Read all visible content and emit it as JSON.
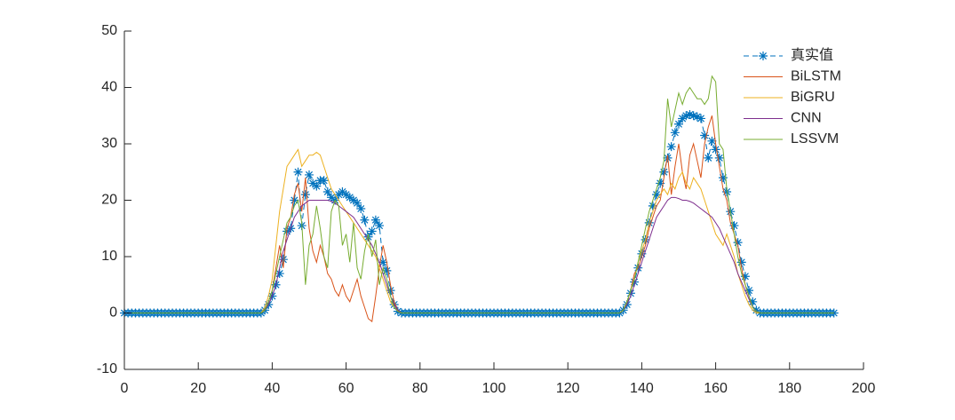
{
  "chart_data": {
    "type": "line",
    "x": [
      0,
      1,
      2,
      3,
      4,
      5,
      6,
      7,
      8,
      9,
      10,
      11,
      12,
      13,
      14,
      15,
      16,
      17,
      18,
      19,
      20,
      21,
      22,
      23,
      24,
      25,
      26,
      27,
      28,
      29,
      30,
      31,
      32,
      33,
      34,
      35,
      36,
      37,
      38,
      39,
      40,
      41,
      42,
      43,
      44,
      45,
      46,
      47,
      48,
      49,
      50,
      51,
      52,
      53,
      54,
      55,
      56,
      57,
      58,
      59,
      60,
      61,
      62,
      63,
      64,
      65,
      66,
      67,
      68,
      69,
      70,
      71,
      72,
      73,
      74,
      75,
      76,
      77,
      78,
      79,
      80,
      81,
      82,
      83,
      84,
      85,
      86,
      87,
      88,
      89,
      90,
      91,
      92,
      93,
      94,
      95,
      96,
      97,
      98,
      99,
      100,
      101,
      102,
      103,
      104,
      105,
      106,
      107,
      108,
      109,
      110,
      111,
      112,
      113,
      114,
      115,
      116,
      117,
      118,
      119,
      120,
      121,
      122,
      123,
      124,
      125,
      126,
      127,
      128,
      129,
      130,
      131,
      132,
      133,
      134,
      135,
      136,
      137,
      138,
      139,
      140,
      141,
      142,
      143,
      144,
      145,
      146,
      147,
      148,
      149,
      150,
      151,
      152,
      153,
      154,
      155,
      156,
      157,
      158,
      159,
      160,
      161,
      162,
      163,
      164,
      165,
      166,
      167,
      168,
      169,
      170,
      171,
      172,
      173,
      174,
      175,
      176,
      177,
      178,
      179,
      180,
      181,
      182,
      183,
      184,
      185,
      186,
      187,
      188,
      189,
      190,
      191,
      192
    ],
    "series": [
      {
        "name": "真实值",
        "color": "#0072BD",
        "dashed": true,
        "marker": "star",
        "values": [
          0,
          0,
          0,
          0,
          0,
          0,
          0,
          0,
          0,
          0,
          0,
          0,
          0,
          0,
          0,
          0,
          0,
          0,
          0,
          0,
          0,
          0,
          0,
          0,
          0,
          0,
          0,
          0,
          0,
          0,
          0,
          0,
          0,
          0,
          0,
          0,
          0,
          0,
          0.5,
          1.5,
          3,
          5,
          7,
          9.5,
          14.5,
          15,
          20,
          25,
          15.5,
          21,
          24.5,
          23,
          22.5,
          23.5,
          23.5,
          21.5,
          20.5,
          20,
          21,
          21.5,
          21,
          20.5,
          20,
          19.5,
          18.5,
          16.5,
          13.5,
          14.5,
          16.5,
          15.5,
          9,
          7.5,
          4,
          1.5,
          0.3,
          0,
          0,
          0,
          0,
          0,
          0,
          0,
          0,
          0,
          0,
          0,
          0,
          0,
          0,
          0,
          0,
          0,
          0,
          0,
          0,
          0,
          0,
          0,
          0,
          0,
          0,
          0,
          0,
          0,
          0,
          0,
          0,
          0,
          0,
          0,
          0,
          0,
          0,
          0,
          0,
          0,
          0,
          0,
          0,
          0,
          0,
          0,
          0,
          0,
          0,
          0,
          0,
          0,
          0,
          0,
          0,
          0,
          0,
          0,
          0,
          0.5,
          1.5,
          3.5,
          5.5,
          8,
          10.5,
          13,
          16,
          19,
          21,
          23,
          25,
          27.5,
          29.5,
          32,
          33.5,
          34.5,
          35,
          35.2,
          35,
          34.8,
          34.5,
          31.5,
          27.5,
          30.5,
          29,
          27.5,
          24,
          21.5,
          18,
          15.5,
          12.5,
          9,
          6.5,
          4,
          2,
          0.5,
          0,
          0,
          0,
          0,
          0,
          0,
          0,
          0,
          0,
          0,
          0,
          0,
          0,
          0,
          0,
          0,
          0,
          0,
          0,
          0,
          0
        ]
      },
      {
        "name": "BiLSTM",
        "color": "#D95319",
        "dashed": false,
        "marker": "none",
        "values": [
          0,
          0,
          0,
          0,
          0,
          0,
          0,
          0,
          0,
          0,
          0,
          0,
          0,
          0,
          0,
          0,
          0,
          0,
          0,
          0,
          0,
          0,
          0,
          0,
          0,
          0,
          0,
          0,
          0,
          0,
          0,
          0,
          0,
          0,
          0,
          0,
          0,
          0,
          0.5,
          2,
          4,
          8,
          12,
          8,
          15,
          17,
          21,
          23,
          18,
          24,
          15,
          11,
          9,
          12,
          10,
          7,
          6,
          4,
          3,
          5,
          3,
          2,
          4,
          6,
          3,
          1,
          -1,
          -1.5,
          3,
          8,
          12,
          9,
          5,
          2,
          0.5,
          0,
          0,
          0,
          0,
          0,
          0,
          0,
          0,
          0,
          0,
          0,
          0,
          0,
          0,
          0,
          0,
          0,
          0,
          0,
          0,
          0,
          0,
          0,
          0,
          0,
          0,
          0,
          0,
          0,
          0,
          0,
          0,
          0,
          0,
          0,
          0,
          0,
          0,
          0,
          0,
          0,
          0,
          0,
          0,
          0,
          0,
          0,
          0,
          0,
          0,
          0,
          0,
          0,
          0,
          0,
          0,
          0,
          0,
          0,
          0,
          0.5,
          2,
          4,
          7,
          8,
          10,
          12,
          15,
          17,
          19,
          20,
          24,
          28,
          21,
          26,
          30,
          25,
          22,
          28,
          30,
          27,
          24,
          30,
          33,
          35,
          30,
          26,
          22,
          20,
          16,
          14,
          12,
          8,
          5,
          3,
          1,
          0.3,
          0,
          0,
          0,
          0,
          0,
          0,
          0,
          0,
          0,
          0,
          0,
          0,
          0,
          0,
          0,
          0,
          0,
          0,
          0,
          0,
          0
        ]
      },
      {
        "name": "BiGRU",
        "color": "#EDB120",
        "dashed": false,
        "marker": "none",
        "values": [
          0,
          0,
          0,
          0,
          0,
          0,
          0,
          0,
          0,
          0,
          0,
          0,
          0,
          0,
          0,
          0,
          0,
          0,
          0,
          0,
          0,
          0,
          0,
          0,
          0,
          0,
          0,
          0,
          0,
          0,
          0,
          0,
          0,
          0,
          0,
          0,
          0,
          0,
          1,
          3,
          6,
          12,
          18,
          22,
          26,
          27,
          28,
          29,
          26,
          27,
          28,
          28,
          28.5,
          28,
          26,
          24,
          22,
          21,
          20,
          19,
          18,
          17,
          16,
          15,
          14,
          13,
          12,
          11,
          10,
          8,
          6,
          4,
          2,
          1,
          0.3,
          0,
          0,
          0,
          0,
          0,
          0,
          0,
          0,
          0,
          0,
          0,
          0,
          0,
          0,
          0,
          0,
          0,
          0,
          0,
          0,
          0,
          0,
          0,
          0,
          0,
          0,
          0,
          0,
          0,
          0,
          0,
          0,
          0,
          0,
          0,
          0,
          0,
          0,
          0,
          0,
          0,
          0,
          0,
          0,
          0,
          0,
          0,
          0,
          0,
          0,
          0,
          0,
          0,
          0,
          0,
          0,
          0,
          0,
          0,
          0,
          0.5,
          2,
          4,
          6,
          9,
          11,
          13,
          16,
          18,
          20,
          21,
          22,
          21,
          23,
          22,
          24,
          25,
          23,
          22,
          24,
          23,
          22,
          20,
          18,
          16,
          14,
          13,
          12,
          14,
          12,
          10,
          7,
          5,
          3,
          1.5,
          0.5,
          0,
          0,
          0,
          0,
          0,
          0,
          0,
          0,
          0,
          0,
          0,
          0,
          0,
          0,
          0,
          0,
          0,
          0,
          0,
          0,
          0,
          0
        ]
      },
      {
        "name": "CNN",
        "color": "#7E2F8E",
        "dashed": false,
        "marker": "none",
        "values": [
          0,
          0,
          0,
          0,
          0,
          0,
          0,
          0,
          0,
          0,
          0,
          0,
          0,
          0,
          0,
          0,
          0,
          0,
          0,
          0,
          0,
          0,
          0,
          0,
          0,
          0,
          0,
          0,
          0,
          0,
          0,
          0,
          0,
          0,
          0,
          0,
          0,
          0,
          0.5,
          1.5,
          3,
          5,
          8,
          11,
          13,
          15,
          17,
          18,
          19,
          19.5,
          20,
          20,
          20,
          20,
          20,
          20,
          19.8,
          19.5,
          19,
          18.5,
          18,
          17.5,
          17,
          16,
          15,
          14,
          13,
          12,
          10.5,
          9,
          7,
          5,
          3,
          1.5,
          0.5,
          0,
          0,
          0,
          0,
          0,
          0,
          0,
          0,
          0,
          0,
          0,
          0,
          0,
          0,
          0,
          0,
          0,
          0,
          0,
          0,
          0,
          0,
          0,
          0,
          0,
          0,
          0,
          0,
          0,
          0,
          0,
          0,
          0,
          0,
          0,
          0,
          0,
          0,
          0,
          0,
          0,
          0,
          0,
          0,
          0,
          0,
          0,
          0,
          0,
          0,
          0,
          0,
          0,
          0,
          0,
          0,
          0,
          0,
          0,
          0,
          0.5,
          1.5,
          3,
          5,
          7,
          9,
          11,
          13,
          15,
          17,
          18,
          19,
          20,
          20.5,
          20.5,
          20.3,
          20,
          20,
          19.8,
          19.5,
          19,
          18.5,
          18,
          17.5,
          17,
          16,
          15,
          13.5,
          12,
          10.5,
          9,
          7,
          5.5,
          4,
          2.5,
          1,
          0.3,
          0,
          0,
          0,
          0,
          0,
          0,
          0,
          0,
          0,
          0,
          0,
          0,
          0,
          0,
          0,
          0,
          0,
          0,
          0,
          0,
          0
        ]
      },
      {
        "name": "LSSVM",
        "color": "#77AC30",
        "dashed": false,
        "marker": "none",
        "values": [
          0,
          0,
          0,
          0,
          0,
          0,
          0,
          0,
          0,
          0,
          0,
          0,
          0,
          0,
          0,
          0,
          0,
          0,
          0,
          0,
          0,
          0,
          0,
          0,
          0,
          0,
          0,
          0,
          0,
          0,
          0,
          0,
          0,
          0,
          0,
          0,
          0,
          0,
          0.5,
          2,
          4,
          7,
          10,
          13,
          16,
          17,
          19,
          20,
          16,
          5,
          12,
          14,
          19,
          15,
          10,
          8,
          18,
          20,
          19,
          12,
          14,
          9,
          16,
          8,
          6,
          11,
          14,
          10,
          13,
          5,
          8,
          6,
          3,
          1,
          0.3,
          0,
          0,
          0,
          0,
          0,
          0,
          0,
          0,
          0,
          0,
          0,
          0,
          0,
          0,
          0,
          0,
          0,
          0,
          0,
          0,
          0,
          0,
          0,
          0,
          0,
          0,
          0,
          0,
          0,
          0,
          0,
          0,
          0,
          0,
          0,
          0,
          0,
          0,
          0,
          0,
          0,
          0,
          0,
          0,
          0,
          0,
          0,
          0,
          0,
          0,
          0,
          0,
          0,
          0,
          0,
          0,
          0,
          0,
          0,
          0,
          0.5,
          2,
          4,
          6,
          9,
          12,
          15,
          18,
          20,
          22,
          24,
          27,
          38,
          33,
          36,
          39,
          37,
          39,
          40,
          39,
          38,
          38,
          37,
          38,
          42,
          41,
          30,
          29,
          22,
          18,
          14,
          10,
          7,
          5,
          3,
          1,
          0.3,
          0,
          0,
          0,
          0,
          0,
          0,
          0,
          0,
          0,
          0,
          0,
          0,
          0,
          0,
          0,
          0,
          0,
          0,
          0,
          0,
          0
        ]
      }
    ],
    "xlim": [
      0,
      200
    ],
    "xticks": [
      0,
      20,
      40,
      60,
      80,
      100,
      120,
      140,
      160,
      180,
      200
    ],
    "ylim": [
      -10,
      50
    ],
    "yticks": [
      -10,
      0,
      10,
      20,
      30,
      40,
      50
    ],
    "legend": "upper-right"
  }
}
